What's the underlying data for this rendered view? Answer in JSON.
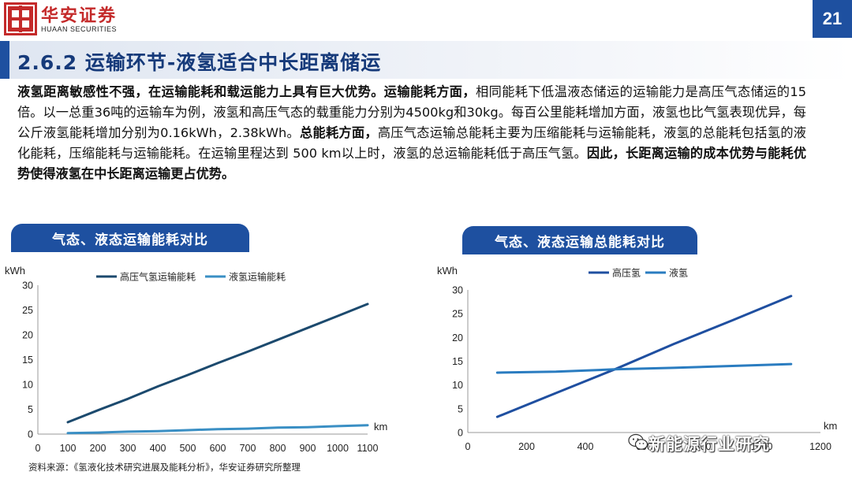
{
  "header": {
    "logo_cn": "华安证券",
    "logo_en": "HUAAN SECURITIES",
    "page_number": "21",
    "brand_color": "#c42a2a",
    "accent_color": "#1e50a0"
  },
  "title": "2.6.2 运输环节-液氢适合中长距离储运",
  "body": {
    "s1": "液氢距离敏感性不强，在运输能耗和载运能力上具有巨大优势。",
    "s2": "运输能耗方面，",
    "s3": "相同能耗下低温液态储运的运输能力是高压气态储运的15倍。以一总重36吨的运输车为例，液氢和高压气态的载重能力分别为4500kg和30kg。每百公里能耗增加方面，液氢也比气氢表现优异，每公斤液氢能耗增加分别为0.16kWh，2.38kWh。",
    "s4": "总能耗方面，",
    "s5": "高压气态运输总能耗主要为压缩能耗与运输能耗，液氢的总能耗包括氢的液化能耗，压缩能耗与运输能耗。在运输里程达到 500 km以上时，液氢的总运输能耗低于高压气氢。",
    "s6": "因此，长距离运输的成本优势与能耗优势使得液氢在中长距离运输更占优势。"
  },
  "source": "资料来源：《氢液化技术研究进展及能耗分析》，华安证券研究所整理",
  "watermark": "新能源行业研究",
  "chart_data": [
    {
      "type": "line",
      "title": "气态、液态运输能耗对比",
      "ylabel": "kWh",
      "xlabel": "km",
      "xlim": [
        0,
        1100
      ],
      "ylim": [
        0,
        30
      ],
      "x_ticks": [
        "0",
        "100",
        "200",
        "300",
        "400",
        "500",
        "600",
        "700",
        "800",
        "900",
        "1000",
        "1100"
      ],
      "y_ticks": [
        "0",
        "5",
        "10",
        "15",
        "20",
        "25",
        "30"
      ],
      "legend_position": "top",
      "grid": false,
      "series": [
        {
          "name": "高压气氢运输能耗",
          "color": "#1c4a6e",
          "x": [
            100,
            200,
            300,
            400,
            500,
            600,
            700,
            800,
            900,
            1000,
            1100
          ],
          "y": [
            2.4,
            4.8,
            7.1,
            9.6,
            11.9,
            14.3,
            16.6,
            19.0,
            21.4,
            23.8,
            26.2
          ]
        },
        {
          "name": "液氢运输能耗",
          "color": "#3a8fc4",
          "x": [
            100,
            200,
            300,
            400,
            500,
            600,
            700,
            800,
            900,
            1000,
            1100
          ],
          "y": [
            0.2,
            0.3,
            0.5,
            0.6,
            0.8,
            1.0,
            1.1,
            1.3,
            1.4,
            1.6,
            1.8
          ]
        }
      ]
    },
    {
      "type": "line",
      "title": "气态、液态运输总能耗对比",
      "ylabel": "kWh",
      "xlabel": "km",
      "xlim": [
        0,
        1200
      ],
      "ylim": [
        0,
        30
      ],
      "x_ticks": [
        "0",
        "200",
        "400",
        "600",
        "800",
        "1000",
        "1200"
      ],
      "y_ticks": [
        "0",
        "5",
        "10",
        "15",
        "20",
        "25",
        "30"
      ],
      "legend_position": "top",
      "grid": false,
      "series": [
        {
          "name": "高压氢",
          "color": "#1f4fa0",
          "x": [
            100,
            300,
            500,
            700,
            900,
            1100
          ],
          "y": [
            3.3,
            8.3,
            13.3,
            18.6,
            23.6,
            28.7
          ]
        },
        {
          "name": "液氢",
          "color": "#2a7cc0",
          "x": [
            100,
            300,
            500,
            700,
            900,
            1100
          ],
          "y": [
            12.6,
            12.8,
            13.3,
            13.6,
            14.0,
            14.4
          ]
        }
      ]
    }
  ]
}
